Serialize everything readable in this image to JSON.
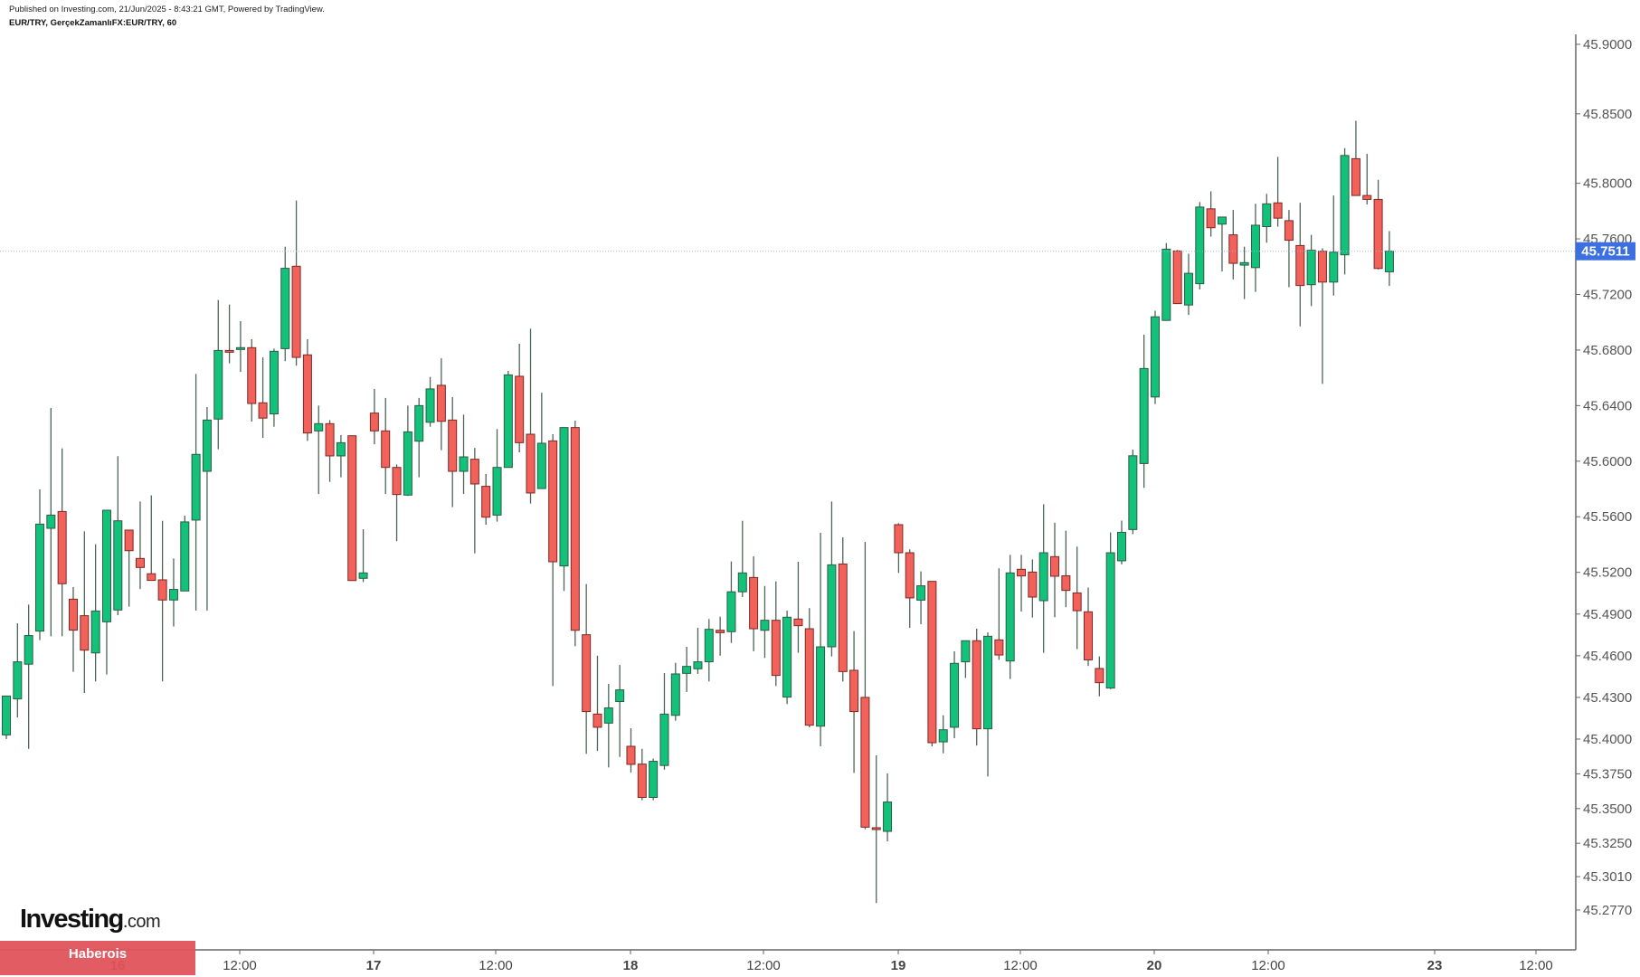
{
  "header": {
    "published": "Published on Investing.com, 21/Jun/2025 - 8:43:21 GMT, Powered by TradingView.",
    "symbol": "EUR/TRY, GerçekZamanlıFX:EUR/TRY, 60"
  },
  "logo": {
    "brand": "Investing",
    "suffix": ".com"
  },
  "banner": {
    "label": "Haberois"
  },
  "chart_data": {
    "type": "candlestick",
    "title": "EUR/TRY, GerçekZamanlıFX:EUR/TRY, 60",
    "interval": "60",
    "ylim": [
      45.27,
      45.91
    ],
    "y_ticks": [
      "45.9000",
      "45.8500",
      "45.8000",
      "45.7600",
      "45.7200",
      "45.6800",
      "45.6400",
      "45.6000",
      "45.5600",
      "45.5200",
      "45.4900",
      "45.4600",
      "45.4300",
      "45.4000",
      "45.3750",
      "45.3500",
      "45.3250",
      "45.3010",
      "45.2770"
    ],
    "x_ticks": [
      "16",
      "12:00",
      "17",
      "12:00",
      "18",
      "12:00",
      "19",
      "12:00",
      "20",
      "12:00",
      "23",
      "12:00"
    ],
    "last_price": "45.7511",
    "colors": {
      "up": "#12c27a",
      "down": "#f2615a",
      "last_price": "#3c6fe0",
      "wick": "#4d6657"
    },
    "ohlc_fields": [
      "open",
      "high",
      "low",
      "close"
    ],
    "candles": [
      [
        45.403,
        45.431,
        45.4,
        45.431
      ],
      [
        45.4289,
        45.4833,
        45.4156,
        45.4556
      ],
      [
        45.4539,
        45.4968,
        45.393,
        45.4745
      ],
      [
        45.4777,
        45.5797,
        45.4712,
        45.5547
      ],
      [
        45.5517,
        45.6383,
        45.474,
        45.5612
      ],
      [
        45.5638,
        45.6092,
        45.474,
        45.5118
      ],
      [
        45.5007,
        45.5094,
        45.4484,
        45.4784
      ],
      [
        45.4888,
        45.5495,
        45.4332,
        45.464
      ],
      [
        45.462,
        45.5402,
        45.4415,
        45.4922
      ],
      [
        45.4844,
        45.5647,
        45.4465,
        45.5647
      ],
      [
        45.4929,
        45.6036,
        45.4892,
        45.5571
      ],
      [
        45.5504,
        45.5504,
        45.4953,
        45.5356
      ],
      [
        45.53,
        45.571,
        45.508,
        45.5235
      ],
      [
        45.519,
        45.5754,
        45.514,
        45.5142
      ],
      [
        45.5146,
        45.5571,
        45.4415,
        45.5001
      ],
      [
        45.5001,
        45.53,
        45.481,
        45.5077
      ],
      [
        45.5066,
        45.5608,
        45.5066,
        45.5563
      ],
      [
        45.5576,
        45.6628,
        45.4925,
        45.6049
      ],
      [
        45.5927,
        45.6389,
        45.4925,
        45.6296
      ],
      [
        45.6303,
        45.716,
        45.6086,
        45.6797
      ],
      [
        45.6797,
        45.7127,
        45.6704,
        45.679
      ],
      [
        45.681,
        45.7008,
        45.6643,
        45.6817
      ],
      [
        45.6817,
        45.6878,
        45.6285,
        45.6415
      ],
      [
        45.642,
        45.6747,
        45.6168,
        45.631
      ],
      [
        45.634,
        45.681,
        45.6248,
        45.6791
      ],
      [
        45.681,
        45.7544,
        45.672,
        45.7388
      ],
      [
        45.7403,
        45.7876,
        45.6687,
        45.6747
      ],
      [
        45.6765,
        45.6878,
        45.6146,
        45.6203
      ],
      [
        45.6218,
        45.64,
        45.5764,
        45.627
      ],
      [
        45.627,
        45.6296,
        45.5851,
        45.6038
      ],
      [
        45.6038,
        45.6188,
        45.5884,
        45.6133
      ],
      [
        45.6183,
        45.6183,
        45.5141,
        45.5141
      ],
      [
        45.5157,
        45.551,
        45.513,
        45.5196
      ],
      [
        45.6346,
        45.652,
        45.6122,
        45.6218
      ],
      [
        45.6218,
        45.6455,
        45.5764,
        45.5955
      ],
      [
        45.5955,
        45.5977,
        45.5424,
        45.576
      ],
      [
        45.5756,
        45.64,
        45.575,
        45.6211
      ],
      [
        45.6144,
        45.6455,
        45.5884,
        45.64
      ],
      [
        45.628,
        45.6606,
        45.6248,
        45.652
      ],
      [
        45.6546,
        45.674,
        45.6079,
        45.6287
      ],
      [
        45.6296,
        45.6461,
        45.5669,
        45.5927
      ],
      [
        45.5927,
        45.6335,
        45.5764,
        45.6031
      ],
      [
        45.6014,
        45.6096,
        45.5337,
        45.5836
      ],
      [
        45.5819,
        45.5908,
        45.5543,
        45.5597
      ],
      [
        45.5612,
        45.6231,
        45.5565,
        45.5955
      ],
      [
        45.5955,
        45.665,
        45.5955,
        45.6621
      ],
      [
        45.6611,
        45.6845,
        45.6064,
        45.6133
      ],
      [
        45.6194,
        45.6953,
        45.5695,
        45.5771
      ],
      [
        45.5803,
        45.6493,
        45.5803,
        45.6129
      ],
      [
        45.6146,
        45.6194,
        45.4382,
        45.5276
      ],
      [
        45.5246,
        45.6242,
        45.5066,
        45.6242
      ],
      [
        45.6242,
        45.6292,
        45.4668,
        45.4783
      ],
      [
        45.4751,
        45.5116,
        45.3894,
        45.4198
      ],
      [
        45.418,
        45.46,
        45.3915,
        45.4085
      ],
      [
        45.4115,
        45.4397,
        45.3796,
        45.4224
      ],
      [
        45.427,
        45.4534,
        45.3872,
        45.4354
      ],
      [
        45.3948,
        45.4078,
        45.376,
        45.3818
      ],
      [
        45.382,
        45.393,
        45.356,
        45.358
      ],
      [
        45.358,
        45.386,
        45.356,
        45.384
      ],
      [
        45.381,
        45.4475,
        45.378,
        45.418
      ],
      [
        45.4171,
        45.4549,
        45.4132,
        45.4469
      ],
      [
        45.4473,
        45.4664,
        45.4339,
        45.4523
      ],
      [
        45.4506,
        45.4801,
        45.4469,
        45.4556
      ],
      [
        45.4556,
        45.4864,
        45.4415,
        45.479
      ],
      [
        45.4783,
        45.4881,
        45.46,
        45.4766
      ],
      [
        45.4773,
        45.5278,
        45.4692,
        45.506
      ],
      [
        45.506,
        45.5571,
        45.5022,
        45.5196
      ],
      [
        45.5163,
        45.5315,
        45.4632,
        45.4794
      ],
      [
        45.4783,
        45.5102,
        45.4584,
        45.4855
      ],
      [
        45.4855,
        45.5135,
        45.4382,
        45.4458
      ],
      [
        45.4302,
        45.4925,
        45.4252,
        45.4877
      ],
      [
        45.4864,
        45.5276,
        45.4621,
        45.4816
      ],
      [
        45.4794,
        45.4942,
        45.4085,
        45.41
      ],
      [
        45.4093,
        45.5484,
        45.3948,
        45.4664
      ],
      [
        45.4664,
        45.571,
        45.4595,
        45.5254
      ],
      [
        45.526,
        45.5452,
        45.4414,
        45.4486
      ],
      [
        45.4495,
        45.4777,
        45.3757,
        45.4198
      ],
      [
        45.43,
        45.5419,
        45.3351,
        45.3366
      ],
      [
        45.3362,
        45.3883,
        45.282,
        45.3356
      ],
      [
        45.3336,
        45.3753,
        45.3264,
        45.3547
      ],
      [
        45.5543,
        45.5554,
        45.5196,
        45.5341
      ],
      [
        45.5341,
        45.5365,
        45.48,
        45.5016
      ],
      [
        45.5,
        45.5207,
        45.4827,
        45.5103
      ],
      [
        45.5135,
        45.5135,
        45.3948,
        45.3974
      ],
      [
        45.398,
        45.4171,
        45.3898,
        45.4067
      ],
      [
        45.4085,
        45.4632,
        45.4006,
        45.4545
      ],
      [
        45.4556,
        45.4708,
        45.444,
        45.4708
      ],
      [
        45.4708,
        45.4794,
        45.3954,
        45.4074
      ],
      [
        45.4074,
        45.4768,
        45.3731,
        45.474
      ],
      [
        45.4714,
        45.5229,
        45.457,
        45.4605
      ],
      [
        45.4562,
        45.5326,
        45.4432,
        45.5196
      ],
      [
        45.5222,
        45.5326,
        45.4918,
        45.5174
      ],
      [
        45.5202,
        45.5293,
        45.4875,
        45.5022
      ],
      [
        45.4996,
        45.569,
        45.4621,
        45.5341
      ],
      [
        45.5313,
        45.5557,
        45.4877,
        45.5172
      ],
      [
        45.5175,
        45.55,
        45.4949,
        45.507
      ],
      [
        45.5052,
        45.5385,
        45.4647,
        45.4924
      ],
      [
        45.4916,
        45.509,
        45.4526,
        45.457
      ],
      [
        45.4508,
        45.4595,
        45.4308,
        45.4406
      ],
      [
        45.4367,
        45.5488,
        45.436,
        45.5341
      ],
      [
        45.5283,
        45.5572,
        45.5257,
        45.5488
      ],
      [
        45.5508,
        45.6083,
        45.5475,
        45.6039
      ],
      [
        45.5983,
        45.6911,
        45.5808,
        45.6667
      ],
      [
        45.6462,
        45.7083,
        45.6411,
        45.7039
      ],
      [
        45.7013,
        45.757,
        45.7013,
        45.7526
      ],
      [
        45.7513,
        45.752,
        45.7134,
        45.7134
      ],
      [
        45.7124,
        45.7493,
        45.7052,
        45.7352
      ],
      [
        45.7277,
        45.7865,
        45.7236,
        45.7829
      ],
      [
        45.7816,
        45.7942,
        45.7616,
        45.768
      ],
      [
        45.7706,
        45.7757,
        45.7365,
        45.7757
      ],
      [
        45.7629,
        45.7808,
        45.7308,
        45.7424
      ],
      [
        45.7411,
        45.7544,
        45.7167,
        45.7429
      ],
      [
        45.7393,
        45.7852,
        45.7218,
        45.7698
      ],
      [
        45.7688,
        45.7924,
        45.7572,
        45.7852
      ],
      [
        45.7859,
        45.819,
        45.7688,
        45.7749
      ],
      [
        45.7731,
        45.7808,
        45.7252,
        45.759
      ],
      [
        45.7552,
        45.786,
        45.697,
        45.7264
      ],
      [
        45.727,
        45.7629,
        45.7116,
        45.7518
      ],
      [
        45.7511,
        45.7532,
        45.6556,
        45.7289
      ],
      [
        45.7289,
        45.7912,
        45.7192,
        45.7504
      ],
      [
        45.7485,
        45.8253,
        45.7344,
        45.82
      ],
      [
        45.8177,
        45.845,
        45.7912,
        45.7912
      ],
      [
        45.7912,
        45.8212,
        45.7847,
        45.7884
      ],
      [
        45.7884,
        45.8025,
        45.738,
        45.7387
      ],
      [
        45.7363,
        45.7656,
        45.7261,
        45.7511
      ]
    ]
  }
}
